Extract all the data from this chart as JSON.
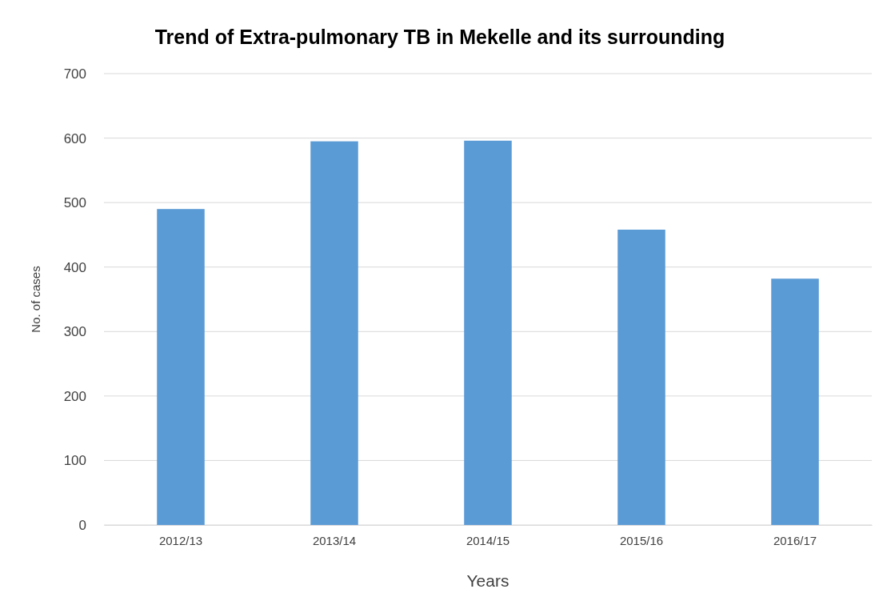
{
  "chart_data": {
    "type": "bar",
    "title": "Trend of Extra-pulmonary TB in Mekelle and its surrounding",
    "xlabel": "Years",
    "ylabel": "No. of cases",
    "categories": [
      "2012/13",
      "2013/14",
      "2014/15",
      "2015/16",
      "2016/17"
    ],
    "values": [
      490,
      595,
      596,
      458,
      382
    ],
    "color": "#5b9bd5",
    "ylim": [
      0,
      700
    ],
    "yticks": [
      0,
      100,
      200,
      300,
      400,
      500,
      600,
      700
    ],
    "grid": "y"
  }
}
